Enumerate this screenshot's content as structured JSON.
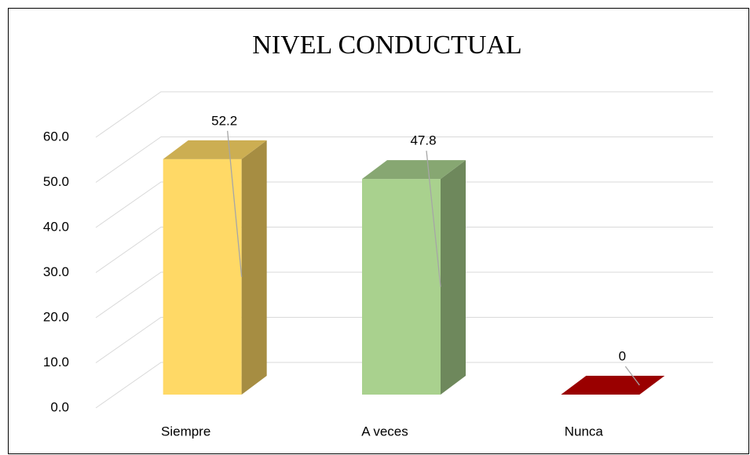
{
  "chart_data": {
    "type": "bar3d",
    "title": "NIVEL CONDUCTUAL",
    "categories": [
      "Siempre",
      "A veces",
      "Nunca"
    ],
    "values": [
      52.2,
      47.8,
      0
    ],
    "colors": [
      "#FFD966",
      "#A9D18E",
      "#C00000"
    ],
    "ylim": [
      0,
      60
    ],
    "yticks": [
      {
        "value": 0,
        "label": "0.0"
      },
      {
        "value": 10,
        "label": "10.0"
      },
      {
        "value": 20,
        "label": "20.0"
      },
      {
        "value": 30,
        "label": "30.0"
      },
      {
        "value": 40,
        "label": "40.0"
      },
      {
        "value": 50,
        "label": "50.0"
      },
      {
        "value": 60,
        "label": "60.0"
      }
    ],
    "grid": true
  }
}
